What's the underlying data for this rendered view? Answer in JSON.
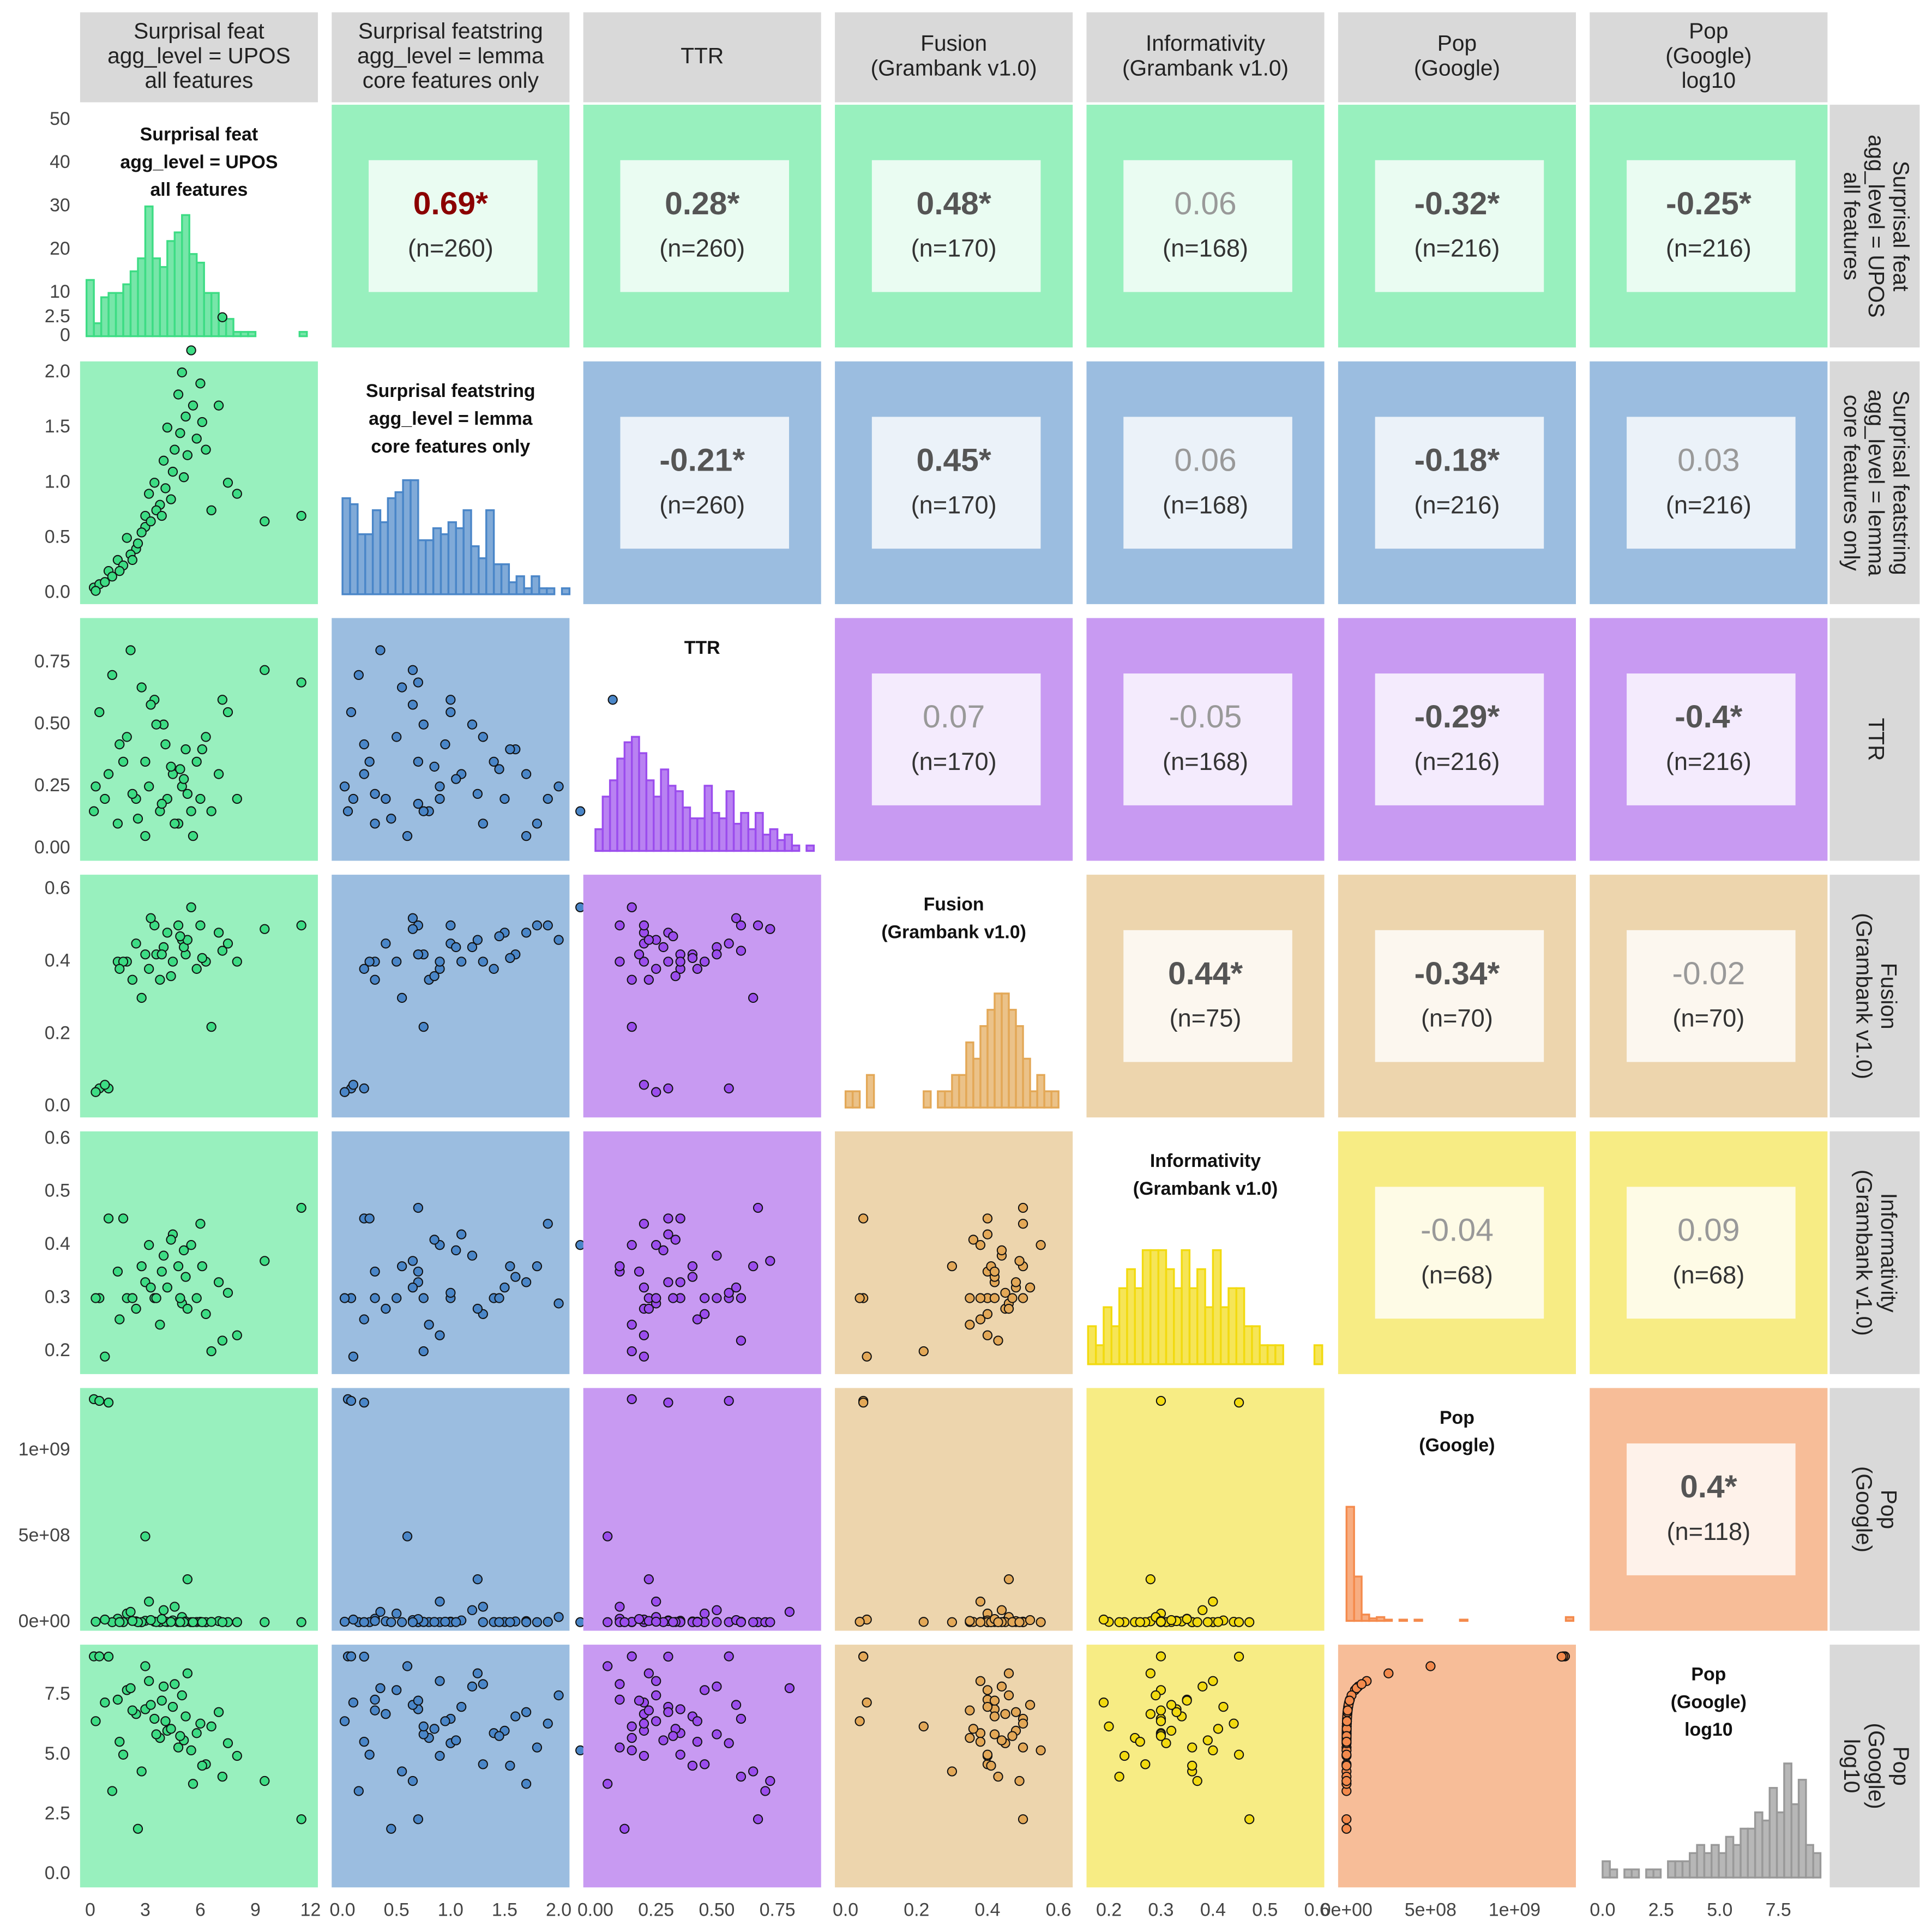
{
  "chart_data": {
    "type": "pairs",
    "ylim": [
      -2.6,
      53.5
    ],
    "yticks": [
      0,
      10,
      20,
      30,
      40,
      50
    ],
    "variables": [
      {
        "label": [
          "Surprisal feat",
          "agg_level = UPOS",
          "all features"
        ],
        "color": "#3ddc84",
        "panel_color": "#98f0be",
        "lim": [
          -0.55,
          12.4
        ],
        "xticks": [
          0,
          3,
          6,
          9,
          12
        ],
        "bins": [
          -0.2,
          0.2,
          0.6,
          1,
          1.4,
          1.8,
          2.2,
          2.6,
          3,
          3.4,
          3.8,
          4.2,
          4.6,
          5,
          5.4,
          5.8,
          6.2,
          6.6,
          7,
          7.4,
          7.8,
          8.2,
          8.6,
          9,
          9.4,
          9.8,
          10.2,
          10.6,
          11,
          11.4,
          11.8
        ],
        "counts": [
          13,
          3,
          9,
          10,
          10,
          12,
          15,
          18,
          30,
          18,
          16,
          22,
          24,
          28,
          19,
          17,
          10,
          10,
          4,
          4,
          1,
          1,
          1,
          0,
          0,
          0,
          0,
          0,
          0,
          1
        ]
      },
      {
        "label": [
          "Surprisal featstring",
          "agg_level = lemma",
          "core features only"
        ],
        "color": "#4a86c8",
        "panel_color": "#9bbde0",
        "lim": [
          -0.1,
          2.1
        ],
        "xticks": [
          {
            "value": 0,
            "label": "0.0"
          },
          0.5,
          {
            "value": 1,
            "label": "1.0"
          },
          1.5,
          {
            "value": 2,
            "label": "2.0"
          }
        ],
        "yticks": [
          {
            "value": 0,
            "label": "0.0"
          },
          0.5,
          {
            "value": 1,
            "label": "1.0"
          },
          1.5,
          {
            "value": 2,
            "label": "2.0"
          },
          2.5
        ],
        "bins": [
          0,
          0.07,
          0.14,
          0.21,
          0.28,
          0.35,
          0.42,
          0.49,
          0.56,
          0.63,
          0.7,
          0.77,
          0.84,
          0.91,
          0.98,
          1.05,
          1.12,
          1.19,
          1.26,
          1.33,
          1.4,
          1.47,
          1.54,
          1.61,
          1.68,
          1.75,
          1.82,
          1.89,
          1.96,
          2.03,
          2.1
        ],
        "counts": [
          16,
          15,
          10,
          10,
          14,
          12,
          16,
          17,
          19,
          19,
          9,
          9,
          11,
          10,
          12,
          11,
          14,
          8,
          6,
          14,
          5,
          5,
          2,
          3,
          1,
          3,
          1,
          1,
          0,
          1
        ]
      },
      {
        "label": [
          "TTR"
        ],
        "color": "#9b4ded",
        "panel_color": "#c89af2",
        "lim": [
          -0.05,
          0.93
        ],
        "xticks": [
          {
            "value": 0,
            "label": "0.00"
          },
          0.25,
          {
            "value": 0.5,
            "label": "0.50"
          },
          0.75
        ],
        "yticks": [
          {
            "value": 0,
            "label": "0.00"
          },
          0.25,
          {
            "value": 0.5,
            "label": "0.50"
          },
          0.75
        ],
        "bins": [
          0,
          0.03,
          0.06,
          0.09,
          0.12,
          0.15,
          0.18,
          0.21,
          0.24,
          0.27,
          0.3,
          0.33,
          0.36,
          0.39,
          0.42,
          0.45,
          0.48,
          0.51,
          0.54,
          0.57,
          0.6,
          0.63,
          0.66,
          0.69,
          0.72,
          0.75,
          0.78,
          0.81,
          0.84,
          0.87,
          0.9
        ],
        "counts": [
          4,
          10,
          13,
          17,
          20,
          21,
          18,
          13,
          10,
          15,
          12,
          11,
          8,
          6,
          6,
          12,
          7,
          6,
          11,
          5,
          7,
          4,
          7,
          3,
          4,
          2,
          3,
          1,
          0,
          1
        ]
      },
      {
        "label": [
          "Fusion",
          "(Grambank v1.0)"
        ],
        "color": "#e3a857",
        "panel_color": "#edd5ad",
        "lim": [
          -0.03,
          0.64
        ],
        "xticks": [
          {
            "value": 0,
            "label": "0.0"
          },
          0.2,
          0.4,
          0.6
        ],
        "yticks": [
          {
            "value": 0,
            "label": "0.0"
          },
          0.2,
          0.4,
          0.6
        ],
        "bins": [
          0,
          0.02,
          0.04,
          0.06,
          0.08,
          0.1,
          0.12,
          0.14,
          0.16,
          0.18,
          0.2,
          0.22,
          0.24,
          0.26,
          0.28,
          0.3,
          0.32,
          0.34,
          0.36,
          0.38,
          0.4,
          0.42,
          0.44,
          0.46,
          0.48,
          0.5,
          0.52,
          0.54,
          0.56,
          0.58,
          0.6
        ],
        "counts": [
          1,
          1,
          0,
          2,
          0,
          0,
          0,
          0,
          0,
          0,
          0,
          1,
          0,
          1,
          1,
          2,
          2,
          4,
          3,
          5,
          6,
          7,
          7,
          6,
          5,
          3,
          1,
          2,
          1,
          1
        ]
      },
      {
        "label": [
          "Informativity",
          "(Grambank v1.0)"
        ],
        "color": "#f2da10",
        "panel_color": "#f7ec84",
        "lim": [
          0.157,
          0.614
        ],
        "xticks": [
          0.2,
          0.3,
          0.4,
          0.5,
          0.6
        ],
        "yticks": [
          0.2,
          0.3,
          0.4,
          0.5,
          0.6
        ],
        "bins": [
          0.16,
          0.175,
          0.19,
          0.205,
          0.22,
          0.235,
          0.25,
          0.265,
          0.28,
          0.295,
          0.31,
          0.325,
          0.34,
          0.355,
          0.37,
          0.385,
          0.4,
          0.415,
          0.43,
          0.445,
          0.46,
          0.475,
          0.49,
          0.505,
          0.52,
          0.535,
          0.55,
          0.565,
          0.58,
          0.595,
          0.61
        ],
        "counts": [
          2,
          1,
          3,
          2,
          4,
          5,
          4,
          6,
          6,
          6,
          5,
          4,
          6,
          4,
          5,
          3,
          6,
          3,
          4,
          4,
          2,
          2,
          1,
          1,
          1,
          0,
          0,
          0,
          0,
          1
        ]
      },
      {
        "label": [
          "Pop",
          "(Google)"
        ],
        "color": "#f48a4c",
        "panel_color": "#f7bd98",
        "lim": [
          -50000000,
          1365000000
        ],
        "xticks": [
          {
            "value": 0,
            "label": "0e+00"
          },
          {
            "value": 500000000,
            "label": "5e+08"
          },
          {
            "value": 1000000000,
            "label": "1e+09"
          }
        ],
        "yticks": [
          {
            "value": 0,
            "label": "0e+00"
          },
          {
            "value": 500000000,
            "label": "5e+08"
          },
          {
            "value": 1000000000,
            "label": "1e+09"
          }
        ],
        "bins": [
          0,
          45000000,
          90000000,
          135000000,
          180000000,
          225000000,
          270000000,
          315000000,
          360000000,
          405000000,
          450000000,
          495000000,
          540000000,
          585000000,
          630000000,
          675000000,
          720000000,
          765000000,
          810000000,
          855000000,
          900000000,
          945000000,
          990000000,
          1035000000,
          1080000000,
          1125000000,
          1170000000,
          1215000000,
          1260000000,
          1305000000,
          1350000000
        ],
        "counts": [
          90,
          35,
          5,
          2,
          3,
          1,
          0,
          1,
          0,
          1,
          0,
          0,
          0,
          0,
          0,
          1,
          0,
          0,
          0,
          0,
          0,
          0,
          0,
          0,
          0,
          0,
          0,
          0,
          0,
          3
        ]
      },
      {
        "label": [
          "Pop",
          "(Google)",
          "log10"
        ],
        "color": "#999999",
        "lim": [
          -0.55,
          9.6
        ],
        "xticks": [
          {
            "value": 0,
            "label": "0.0"
          },
          2.5,
          {
            "value": 5,
            "label": "5.0"
          },
          7.5
        ],
        "yticks": [
          {
            "value": 0,
            "label": "0.0"
          },
          2.5,
          {
            "value": 5,
            "label": "5.0"
          },
          7.5
        ],
        "bins": [
          0,
          0.31,
          0.62,
          0.93,
          1.24,
          1.55,
          1.86,
          2.17,
          2.48,
          2.79,
          3.1,
          3.41,
          3.72,
          4.03,
          4.34,
          4.65,
          4.96,
          5.27,
          5.58,
          5.89,
          6.2,
          6.51,
          6.82,
          7.13,
          7.44,
          7.75,
          8.06,
          8.37,
          8.68,
          8.99,
          9.3
        ],
        "counts": [
          2,
          1,
          0,
          1,
          1,
          0,
          1,
          1,
          0,
          2,
          2,
          2,
          3,
          4,
          3,
          4,
          3,
          5,
          4,
          6,
          6,
          8,
          7,
          11,
          8,
          14,
          9,
          12,
          4,
          3
        ]
      }
    ],
    "correlations": [
      [
        {
          "r": "0.69*",
          "n": "(n=260)",
          "significant": true,
          "color": "#8b0000"
        },
        {
          "r": "0.28*",
          "n": "(n=260)",
          "significant": true,
          "color": "#555555"
        },
        {
          "r": "0.48*",
          "n": "(n=170)",
          "significant": true,
          "color": "#555555"
        },
        {
          "r": "0.06",
          "n": "(n=168)",
          "significant": false,
          "color": "#999999"
        },
        {
          "r": "-0.32*",
          "n": "(n=216)",
          "significant": true,
          "color": "#555555"
        },
        {
          "r": "-0.25*",
          "n": "(n=216)",
          "significant": true,
          "color": "#555555"
        }
      ],
      [
        {
          "r": "-0.21*",
          "n": "(n=260)",
          "significant": true,
          "color": "#555555"
        },
        {
          "r": "0.45*",
          "n": "(n=170)",
          "significant": true,
          "color": "#555555"
        },
        {
          "r": "0.06",
          "n": "(n=168)",
          "significant": false,
          "color": "#999999"
        },
        {
          "r": "-0.18*",
          "n": "(n=216)",
          "significant": true,
          "color": "#555555"
        },
        {
          "r": "0.03",
          "n": "(n=216)",
          "significant": false,
          "color": "#999999"
        }
      ],
      [
        {
          "r": "0.07",
          "n": "(n=170)",
          "significant": false,
          "color": "#999999"
        },
        {
          "r": "-0.05",
          "n": "(n=168)",
          "significant": false,
          "color": "#999999"
        },
        {
          "r": "-0.29*",
          "n": "(n=216)",
          "significant": true,
          "color": "#555555"
        },
        {
          "r": "-0.4*",
          "n": "(n=216)",
          "significant": true,
          "color": "#555555"
        }
      ],
      [
        {
          "r": "0.44*",
          "n": "(n=75)",
          "significant": true,
          "color": "#555555"
        },
        {
          "r": "-0.34*",
          "n": "(n=70)",
          "significant": true,
          "color": "#555555"
        },
        {
          "r": "-0.02",
          "n": "(n=70)",
          "significant": false,
          "color": "#999999"
        }
      ],
      [
        {
          "r": "-0.04",
          "n": "(n=68)",
          "significant": false,
          "color": "#999999"
        },
        {
          "r": "0.09",
          "n": "(n=68)",
          "significant": false,
          "color": "#999999"
        }
      ],
      [
        {
          "r": "0.4*",
          "n": "(n=118)",
          "significant": true,
          "color": "#555555"
        }
      ]
    ],
    "observations": [
      [
        0.2,
        0.05,
        0.15,
        null,
        null,
        1300000000,
        9.11
      ],
      [
        0.5,
        0.08,
        0.55,
        0.05,
        0.3,
        1290000000,
        9.11
      ],
      [
        1.0,
        0.2,
        0.3,
        0.05,
        0.45,
        1280000000,
        9.1
      ],
      [
        1.5,
        0.3,
        0.1,
        0.4,
        0.35,
        20000000,
        7.3
      ],
      [
        2.0,
        0.5,
        0.45,
        0.4,
        0.3,
        50000000,
        7.7
      ],
      [
        2.5,
        0.4,
        0.2,
        0.45,
        0.28,
        5000000,
        6.7
      ],
      [
        3.0,
        0.7,
        0.35,
        0.42,
        0.33,
        8000000,
        6.9
      ],
      [
        3.2,
        0.9,
        0.25,
        0.38,
        0.4,
        120000000,
        8.08
      ],
      [
        3.5,
        1.0,
        0.6,
        0.5,
        0.3,
        3000000,
        6.5
      ],
      [
        3.8,
        0.8,
        0.15,
        0.35,
        0.25,
        500000,
        5.7
      ],
      [
        4.0,
        1.2,
        0.5,
        0.44,
        0.38,
        70000000,
        7.85
      ],
      [
        4.2,
        1.5,
        0.2,
        0.48,
        0.32,
        1000000,
        6.0
      ],
      [
        4.5,
        1.1,
        0.3,
        0.4,
        0.42,
        10000000,
        7.0
      ],
      [
        4.8,
        1.8,
        0.1,
        0.5,
        0.36,
        200000,
        5.3
      ],
      [
        5.0,
        2.0,
        0.25,
        0.46,
        0.29,
        30000000,
        7.48
      ],
      [
        5.2,
        1.6,
        0.4,
        0.42,
        0.34,
        4000000,
        6.6
      ],
      [
        5.5,
        2.2,
        0.15,
        0.55,
        0.4,
        150000,
        5.18
      ],
      [
        5.8,
        1.4,
        0.35,
        0.38,
        0.3,
        800000,
        5.9
      ],
      [
        6.0,
        1.9,
        0.2,
        0.5,
        0.44,
        2000000,
        6.3
      ],
      [
        6.3,
        1.3,
        0.45,
        0.4,
        0.27,
        40000,
        4.6
      ],
      [
        7.0,
        1.7,
        0.3,
        0.48,
        0.33,
        6000000,
        6.78
      ],
      [
        7.5,
        1.0,
        0.55,
        0.45,
        0.31,
        300000,
        5.48
      ],
      [
        8.0,
        0.9,
        0.2,
        0.4,
        0.23,
        90000,
        4.95
      ],
      [
        11.5,
        0.7,
        0.67,
        0.5,
        0.47,
        200,
        2.3
      ],
      [
        1.2,
        0.15,
        0.7,
        null,
        null,
        3000,
        3.48
      ],
      [
        2.2,
        0.35,
        0.8,
        null,
        null,
        60000000,
        7.78
      ],
      [
        3.0,
        0.6,
        0.05,
        null,
        null,
        500000000,
        8.7
      ],
      [
        2.8,
        0.55,
        0.65,
        0.3,
        0.36,
        20000,
        4.3
      ],
      [
        3.6,
        0.75,
        0.5,
        0.42,
        0.3,
        700000,
        5.85
      ],
      [
        4.1,
        0.95,
        0.42,
        null,
        null,
        2500000,
        6.4
      ],
      [
        4.6,
        1.3,
        0.1,
        null,
        null,
        90000000,
        7.95
      ],
      [
        5.1,
        1.05,
        0.28,
        0.44,
        0.39,
        400000,
        5.6
      ],
      [
        5.6,
        1.7,
        0.05,
        null,
        null,
        6000,
        3.78
      ],
      [
        6.6,
        0.75,
        0.15,
        0.22,
        0.2,
        1500000,
        6.18
      ],
      [
        0.8,
        0.1,
        0.2,
        0.06,
        0.19,
        15000000,
        7.18
      ],
      [
        1.8,
        0.25,
        0.35,
        0.4,
        0.45,
        100000,
        5.0
      ],
      [
        2.6,
        0.45,
        0.12,
        null,
        null,
        80,
        1.9
      ],
      [
        3.3,
        0.65,
        0.58,
        0.52,
        0.32,
        12000000,
        7.08
      ],
      [
        4.4,
        0.85,
        0.33,
        0.36,
        0.41,
        1200000,
        6.08
      ],
      [
        5.3,
        1.25,
        0.22,
        0.46,
        0.28,
        250000000,
        8.4
      ],
      [
        6.1,
        1.55,
        0.4,
        0.41,
        0.36,
        35000,
        4.54
      ],
      [
        2.3,
        0.3,
        0.22,
        0.35,
        0.3,
        7000000,
        6.85
      ],
      [
        3.9,
        0.7,
        0.18,
        0.42,
        0.35,
        18000000,
        7.26
      ],
      [
        4.9,
        1.45,
        0.32,
        0.47,
        0.3,
        600000,
        5.78
      ],
      [
        0.3,
        0.02,
        0.25,
        0.04,
        0.3,
        2500000,
        6.4
      ],
      [
        1.6,
        0.2,
        0.42,
        0.38,
        0.26,
        350000,
        5.54
      ],
      [
        7.2,
        2.5,
        0.6,
        0.43,
        0.22,
        12000,
        4.08
      ],
      [
        9.5,
        0.65,
        0.72,
        0.49,
        0.37,
        8000,
        3.9
      ]
    ]
  }
}
